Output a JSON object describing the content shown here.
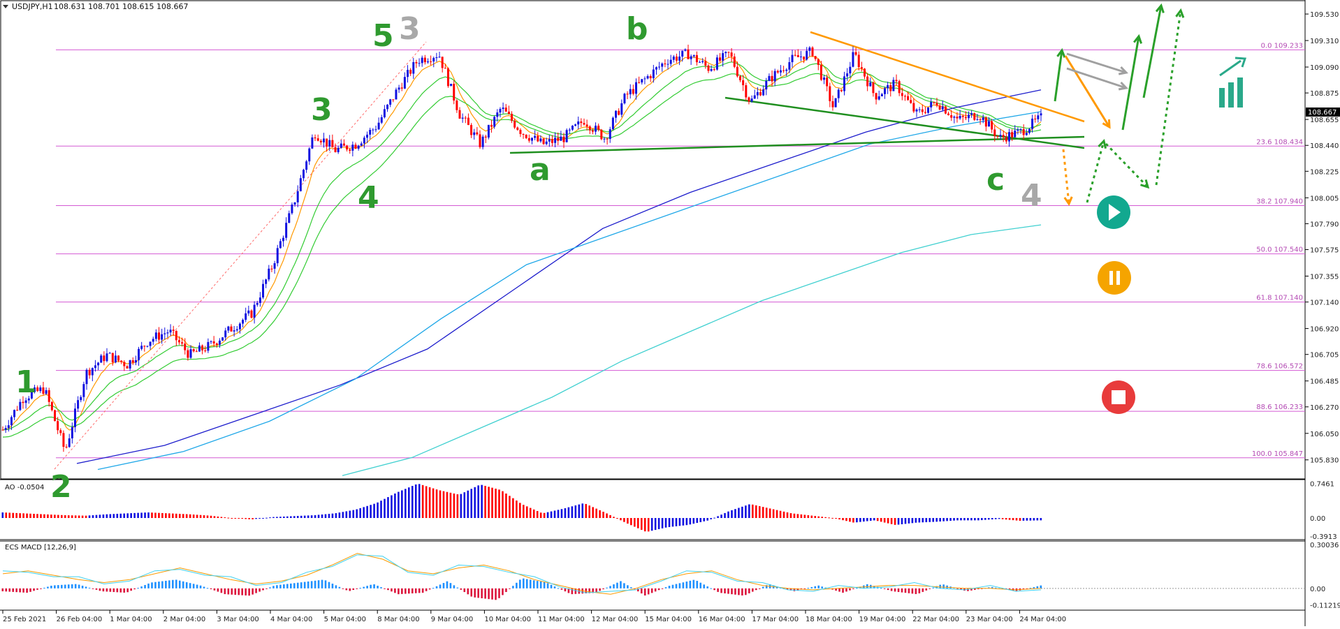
{
  "header": {
    "symbol": "USDJPY,H1",
    "ohlc": "108.631 108.701 108.615 108.667"
  },
  "colors": {
    "bull": "#1010e0",
    "bear": "#ff0000",
    "fib": "#d45ad4",
    "ema_fast": "#ff9900",
    "ema_mid": "#33cc33",
    "ma_100": "#1c1ccc",
    "ma_144": "#1ea7e8",
    "ma_233": "#40d0d0",
    "trend_green": "#1f8f1f",
    "trend_orange": "#ff9900",
    "play": "#12a88f",
    "pause": "#f5a400",
    "stop": "#e83b3b"
  },
  "chart_data": [
    {
      "type": "line",
      "title": "USDJPY,H1",
      "xlabel": "",
      "ylabel": "",
      "ylim": [
        105.73,
        109.6
      ],
      "x_ticks": [
        "25 Feb 2021",
        "26 Feb 04:00",
        "1 Mar 04:00",
        "2 Mar 04:00",
        "3 Mar 04:00",
        "4 Mar 04:00",
        "5 Mar 04:00",
        "8 Mar 04:00",
        "9 Mar 04:00",
        "10 Mar 04:00",
        "11 Mar 04:00",
        "12 Mar 04:00",
        "15 Mar 04:00",
        "16 Mar 04:00",
        "17 Mar 04:00",
        "18 Mar 04:00",
        "19 Mar 04:00",
        "22 Mar 04:00",
        "23 Mar 04:00",
        "24 Mar 04:00"
      ],
      "y_ticks": [
        "109.530",
        "109.310",
        "109.090",
        "108.875",
        "108.655",
        "108.440",
        "108.225",
        "108.005",
        "107.790",
        "107.575",
        "107.355",
        "107.140",
        "106.920",
        "106.705",
        "106.485",
        "106.270",
        "106.050",
        "105.830"
      ],
      "last_price": "108.667",
      "fib_levels": [
        {
          "label": "0.0 109.233",
          "value": 109.233
        },
        {
          "label": "23.6 108.434",
          "value": 108.434
        },
        {
          "label": "38.2 107.940",
          "value": 107.94
        },
        {
          "label": "50.0 107.540",
          "value": 107.54
        },
        {
          "label": "61.8 107.140",
          "value": 107.14
        },
        {
          "label": "78.6 106.572",
          "value": 106.572
        },
        {
          "label": "88.6 106.233",
          "value": 106.233
        },
        {
          "label": "100.0 105.847",
          "value": 105.847
        }
      ],
      "price_path": {
        "x": [
          "25 Feb 00:00",
          "25 Feb 12:00",
          "26 Feb 00:00",
          "26 Feb 04:00",
          "26 Feb 16:00",
          "1 Mar 04:00",
          "1 Mar 16:00",
          "2 Mar 04:00",
          "2 Mar 12:00",
          "2 Mar 20:00",
          "3 Mar 04:00",
          "3 Mar 16:00",
          "4 Mar 04:00",
          "4 Mar 12:00",
          "4 Mar 20:00",
          "5 Mar 04:00",
          "5 Mar 12:00",
          "5 Mar 20:00",
          "8 Mar 04:00",
          "8 Mar 16:00",
          "9 Mar 00:00",
          "9 Mar 04:00",
          "9 Mar 12:00",
          "10 Mar 00:00",
          "10 Mar 04:00",
          "10 Mar 12:00",
          "10 Mar 20:00",
          "11 Mar 04:00",
          "11 Mar 12:00",
          "11 Mar 20:00",
          "12 Mar 04:00",
          "12 Mar 12:00",
          "12 Mar 20:00",
          "15 Mar 04:00",
          "15 Mar 16:00",
          "16 Mar 04:00",
          "16 Mar 12:00",
          "16 Mar 20:00",
          "17 Mar 04:00",
          "17 Mar 12:00",
          "18 Mar 00:00",
          "18 Mar 04:00",
          "18 Mar 12:00",
          "19 Mar 04:00",
          "19 Mar 16:00",
          "22 Mar 04:00",
          "22 Mar 16:00",
          "23 Mar 04:00",
          "23 Mar 16:00",
          "24 Mar 04:00",
          "24 Mar 08:00"
        ],
        "y": [
          106.08,
          106.35,
          106.42,
          105.9,
          106.55,
          106.7,
          106.62,
          106.82,
          106.9,
          106.7,
          106.78,
          106.92,
          107.05,
          107.45,
          107.95,
          108.55,
          108.4,
          108.45,
          108.6,
          108.9,
          109.15,
          109.2,
          108.7,
          108.45,
          108.75,
          108.55,
          108.45,
          108.5,
          108.65,
          108.5,
          108.85,
          109.0,
          109.15,
          109.2,
          109.08,
          109.2,
          108.8,
          109.0,
          109.15,
          109.22,
          108.75,
          109.2,
          108.85,
          108.95,
          108.7,
          108.8,
          108.65,
          108.7,
          108.5,
          108.55,
          108.667
        ]
      },
      "moving_averages": [
        {
          "name": "",
          "color": "#1c1ccc",
          "y": [
            105.8,
            105.95,
            106.2,
            106.45,
            106.75,
            107.25,
            107.75,
            108.05,
            108.3,
            108.55,
            108.75,
            108.9
          ]
        },
        {
          "name": "",
          "color": "#1ea7e8",
          "y": [
            105.75,
            105.9,
            106.15,
            106.5,
            107.0,
            107.45,
            107.7,
            107.95,
            108.2,
            108.45,
            108.6,
            108.72
          ]
        },
        {
          "name": "",
          "color": "#40d0d0",
          "y": [
            105.7,
            105.85,
            106.1,
            106.35,
            106.65,
            106.9,
            107.15,
            107.35,
            107.55,
            107.7,
            107.78
          ]
        }
      ],
      "annotations": [
        "1",
        "2",
        "3",
        "4",
        "5",
        "3",
        "a",
        "b",
        "c",
        "4"
      ]
    },
    {
      "type": "bar",
      "title": "AO -0.0504",
      "y_ticks": [
        "0.7461",
        "0.00",
        "-0.3913"
      ],
      "ylim": [
        -0.42,
        0.78
      ],
      "values": [
        0.12,
        0.1,
        0.08,
        0.06,
        0.05,
        0.08,
        0.1,
        0.12,
        0.1,
        0.08,
        0.05,
        0.0,
        -0.03,
        0.02,
        0.04,
        0.06,
        0.1,
        0.18,
        0.32,
        0.55,
        0.74,
        0.6,
        0.5,
        0.72,
        0.6,
        0.3,
        0.1,
        0.2,
        0.32,
        0.12,
        -0.1,
        -0.3,
        -0.2,
        -0.15,
        -0.05,
        0.15,
        0.3,
        0.2,
        0.1,
        0.05,
        0.0,
        -0.1,
        -0.05,
        -0.15,
        -0.1,
        -0.08,
        -0.05,
        -0.05,
        -0.02,
        -0.06,
        -0.05
      ]
    },
    {
      "type": "bar",
      "title": "ECS MACD [12,26,9]",
      "y_ticks": [
        "0.30036",
        "0.00",
        "-0.11219"
      ],
      "ylim": [
        -0.13,
        0.31
      ],
      "values": [
        -0.02,
        -0.03,
        0.02,
        0.03,
        -0.02,
        -0.03,
        0.04,
        0.06,
        0.02,
        -0.04,
        -0.05,
        0.02,
        0.04,
        0.06,
        -0.02,
        0.03,
        -0.04,
        -0.03,
        0.05,
        -0.06,
        -0.08,
        0.07,
        0.04,
        -0.04,
        -0.03,
        0.05,
        -0.05,
        0.02,
        0.06,
        -0.03,
        -0.05,
        0.03,
        -0.02,
        0.02,
        -0.03,
        0.03,
        -0.02,
        -0.04,
        0.03,
        -0.02,
        0.01,
        -0.02,
        0.02
      ],
      "signal": [
        0.1,
        0.12,
        0.09,
        0.06,
        0.04,
        0.06,
        0.1,
        0.14,
        0.1,
        0.06,
        0.03,
        0.05,
        0.09,
        0.16,
        0.24,
        0.2,
        0.12,
        0.1,
        0.14,
        0.16,
        0.12,
        0.06,
        0.02,
        -0.02,
        -0.04,
        0.0,
        0.06,
        0.1,
        0.12,
        0.06,
        0.02,
        0.0,
        -0.01,
        0.0,
        0.01,
        0.02,
        0.02,
        0.01,
        0.0,
        0.0,
        -0.01,
        0.0
      ]
    }
  ]
}
